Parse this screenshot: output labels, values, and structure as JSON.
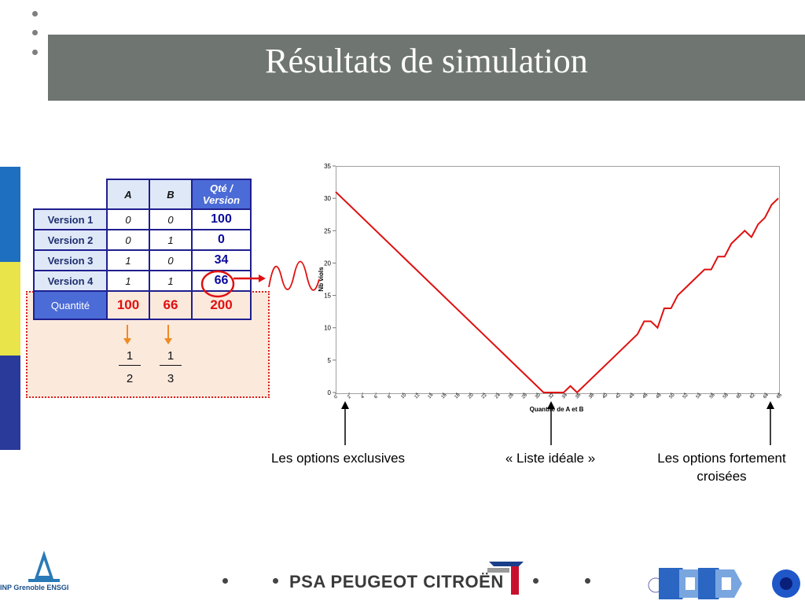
{
  "slide": {
    "title": "Résultats de simulation",
    "colors": {
      "title_bar": "#6f7570",
      "red": "#e01010",
      "blue": "#4b6bd6",
      "dark_blue": "#1f1f8f"
    }
  },
  "table": {
    "headers": [
      "A",
      "B",
      "Qté / Version"
    ],
    "rows": [
      {
        "label": "Version 1",
        "a": "0",
        "b": "0",
        "qte": "100"
      },
      {
        "label": "Version 2",
        "a": "0",
        "b": "1",
        "qte": "0"
      },
      {
        "label": "Version 3",
        "a": "1",
        "b": "0",
        "qte": "34"
      },
      {
        "label": "Version 4",
        "a": "1",
        "b": "1",
        "qte": "66"
      }
    ],
    "total": {
      "label": "Quantité",
      "a": "100",
      "b": "66",
      "qte": "200"
    },
    "fractions": [
      {
        "num": "1",
        "den": "2"
      },
      {
        "num": "1",
        "den": "3"
      }
    ]
  },
  "chart_data": {
    "type": "line",
    "title": "",
    "xlabel": "Quantité de A et B",
    "ylabel": "Nb viols",
    "xlim": [
      0,
      66
    ],
    "ylim": [
      0,
      35
    ],
    "x_ticks": [
      0,
      2,
      4,
      6,
      8,
      10,
      12,
      14,
      16,
      18,
      20,
      22,
      24,
      26,
      28,
      30,
      32,
      34,
      36,
      38,
      40,
      42,
      44,
      46,
      48,
      50,
      52,
      54,
      56,
      58,
      60,
      62,
      64,
      66
    ],
    "y_ticks": [
      0,
      5,
      10,
      15,
      20,
      25,
      30,
      35
    ],
    "grid": false,
    "series": [
      {
        "color": "#e01010",
        "x": [
          0,
          31,
          34,
          35,
          36,
          45,
          46,
          47,
          48,
          49,
          50,
          51,
          52,
          53,
          54,
          55,
          56,
          57,
          58,
          59,
          60,
          61,
          62,
          63,
          64,
          65,
          66
        ],
        "y": [
          31,
          0,
          0,
          1,
          0,
          9,
          11,
          11,
          10,
          13,
          13,
          15,
          16,
          17,
          18,
          19,
          19,
          21,
          21,
          23,
          24,
          25,
          24,
          26,
          27,
          29,
          30
        ]
      }
    ]
  },
  "captions": {
    "left": "Les options exclusives",
    "middle": "« Liste idéale »",
    "right": "Les options fortement croisées"
  },
  "logos": {
    "inp": "INP Grenoble ENSGI",
    "psa": "PSA PEUGEOT CITROËN",
    "gilco": "GILCO"
  }
}
